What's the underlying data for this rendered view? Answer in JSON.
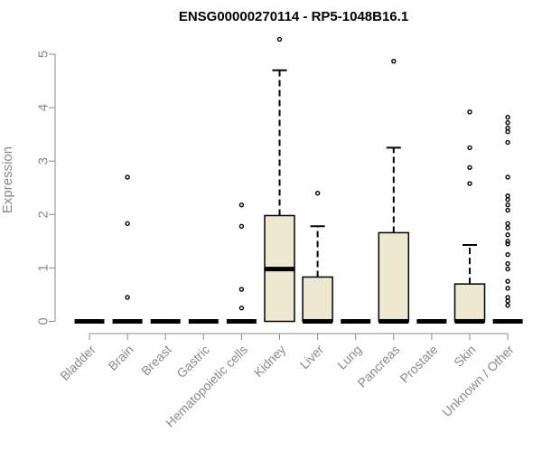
{
  "chart_data": {
    "type": "boxplot",
    "title": "ENSG00000270114 - RP5-1048B16.1",
    "ylabel": "Expression",
    "xlabel": "",
    "ylim": [
      0,
      5.25
    ],
    "yticks": [
      "0",
      "1",
      "2",
      "3",
      "4",
      "5"
    ],
    "box_fill": "#ede8d0",
    "categories": [
      "Bladder",
      "Brain",
      "Breast",
      "Gastric",
      "Hematopoietic cells",
      "Kidney",
      "Liver",
      "Lung",
      "Pancreas",
      "Prostate",
      "Skin",
      "Unknown / Other"
    ],
    "boxes": [
      {
        "q1": 0,
        "median": 0,
        "q3": 0,
        "whisker_low": 0,
        "whisker_high": 0,
        "outliers": []
      },
      {
        "q1": 0,
        "median": 0,
        "q3": 0,
        "whisker_low": 0,
        "whisker_high": 0,
        "outliers": [
          0.45,
          1.83,
          2.7
        ]
      },
      {
        "q1": 0,
        "median": 0,
        "q3": 0,
        "whisker_low": 0,
        "whisker_high": 0,
        "outliers": []
      },
      {
        "q1": 0,
        "median": 0,
        "q3": 0,
        "whisker_low": 0,
        "whisker_high": 0,
        "outliers": []
      },
      {
        "q1": 0,
        "median": 0,
        "q3": 0,
        "whisker_low": 0,
        "whisker_high": 0,
        "outliers": [
          0.25,
          0.6,
          1.78,
          2.18
        ]
      },
      {
        "q1": 0,
        "median": 0.98,
        "q3": 1.98,
        "whisker_low": 0,
        "whisker_high": 4.7,
        "outliers": [
          5.28
        ]
      },
      {
        "q1": 0,
        "median": 0,
        "q3": 0.83,
        "whisker_low": 0,
        "whisker_high": 1.78,
        "outliers": [
          2.4
        ]
      },
      {
        "q1": 0,
        "median": 0,
        "q3": 0,
        "whisker_low": 0,
        "whisker_high": 0,
        "outliers": []
      },
      {
        "q1": 0,
        "median": 0,
        "q3": 1.66,
        "whisker_low": 0,
        "whisker_high": 3.25,
        "outliers": [
          4.87
        ]
      },
      {
        "q1": 0,
        "median": 0,
        "q3": 0,
        "whisker_low": 0,
        "whisker_high": 0,
        "outliers": []
      },
      {
        "q1": 0,
        "median": 0,
        "q3": 0.7,
        "whisker_low": 0,
        "whisker_high": 1.43,
        "outliers": [
          2.58,
          2.88,
          3.25,
          3.92
        ]
      },
      {
        "q1": 0,
        "median": 0,
        "q3": 0,
        "whisker_low": 0,
        "whisker_high": 0,
        "outliers": [
          0.3,
          0.38,
          0.45,
          0.62,
          0.75,
          0.98,
          1.08,
          1.25,
          1.45,
          1.5,
          1.62,
          1.75,
          1.83,
          2.08,
          2.18,
          2.28,
          2.35,
          2.7,
          3.35,
          3.55,
          3.62,
          3.72,
          3.82
        ]
      }
    ]
  }
}
